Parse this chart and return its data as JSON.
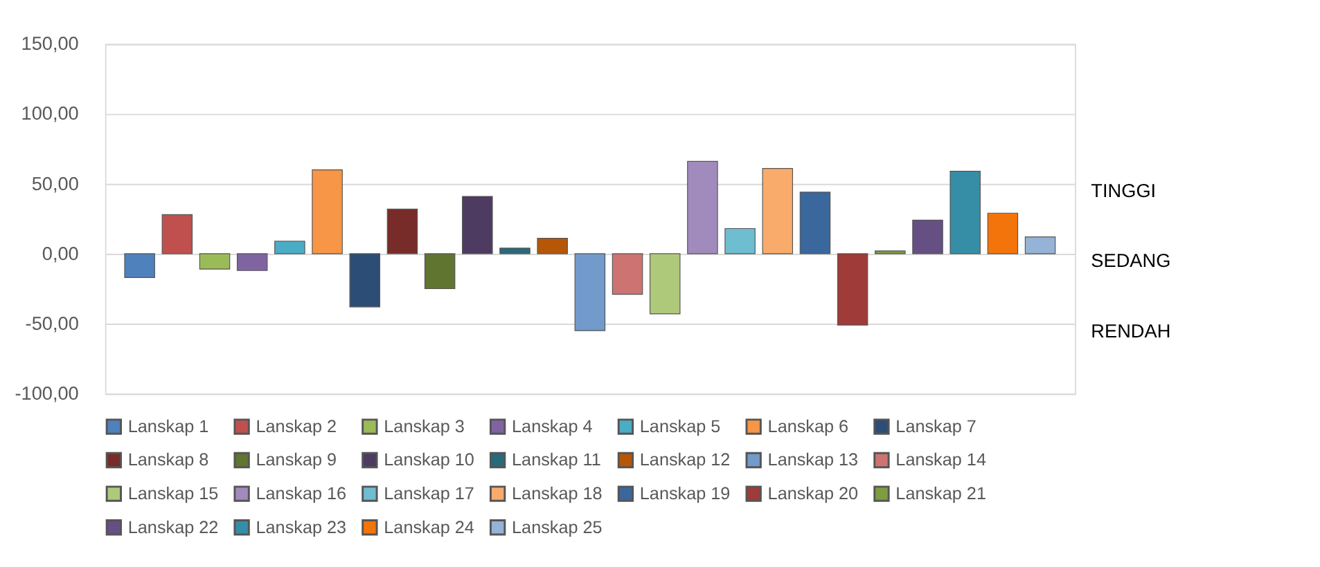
{
  "chart_data": {
    "type": "bar",
    "categories": [
      null
    ],
    "series": [
      {
        "name": "Lanskap 1",
        "color": "#4f81bd",
        "values": [
          -17
        ]
      },
      {
        "name": "Lanskap 2",
        "color": "#c0504d",
        "values": [
          28
        ]
      },
      {
        "name": "Lanskap 3",
        "color": "#9bbb59",
        "values": [
          -11
        ]
      },
      {
        "name": "Lanskap 4",
        "color": "#8064a2",
        "values": [
          -12
        ]
      },
      {
        "name": "Lanskap 5",
        "color": "#4bacc6",
        "values": [
          9
        ]
      },
      {
        "name": "Lanskap 6",
        "color": "#f79646",
        "values": [
          60
        ]
      },
      {
        "name": "Lanskap 7",
        "color": "#2c4d75",
        "values": [
          -38
        ]
      },
      {
        "name": "Lanskap 8",
        "color": "#772c2a",
        "values": [
          32
        ]
      },
      {
        "name": "Lanskap 9",
        "color": "#5f7530",
        "values": [
          -25
        ]
      },
      {
        "name": "Lanskap 10",
        "color": "#4d3b62",
        "values": [
          41
        ]
      },
      {
        "name": "Lanskap 11",
        "color": "#276a7c",
        "values": [
          4
        ]
      },
      {
        "name": "Lanskap 12",
        "color": "#b65708",
        "values": [
          11
        ]
      },
      {
        "name": "Lanskap 13",
        "color": "#729aca",
        "values": [
          -55
        ]
      },
      {
        "name": "Lanskap 14",
        "color": "#cd7371",
        "values": [
          -29
        ]
      },
      {
        "name": "Lanskap 15",
        "color": "#afc97a",
        "values": [
          -43
        ]
      },
      {
        "name": "Lanskap 16",
        "color": "#a18bbd",
        "values": [
          66
        ]
      },
      {
        "name": "Lanskap 17",
        "color": "#6fbdd1",
        "values": [
          18
        ]
      },
      {
        "name": "Lanskap 18",
        "color": "#f9ab6b",
        "values": [
          61
        ]
      },
      {
        "name": "Lanskap 19",
        "color": "#3a679c",
        "values": [
          44
        ]
      },
      {
        "name": "Lanskap 20",
        "color": "#9f3b38",
        "values": [
          -51
        ]
      },
      {
        "name": "Lanskap 21",
        "color": "#7f9c40",
        "values": [
          2
        ]
      },
      {
        "name": "Lanskap 22",
        "color": "#664f83",
        "values": [
          24
        ]
      },
      {
        "name": "Lanskap 23",
        "color": "#358ea6",
        "values": [
          59
        ]
      },
      {
        "name": "Lanskap 24",
        "color": "#f3740b",
        "values": [
          29
        ]
      },
      {
        "name": "Lanskap 25",
        "color": "#95b3d7",
        "values": [
          12
        ]
      }
    ],
    "ylim": [
      -100,
      150
    ],
    "yticks": [
      {
        "value": -100,
        "label": "-100,00"
      },
      {
        "value": -50,
        "label": "-50,00"
      },
      {
        "value": 0,
        "label": "0,00"
      },
      {
        "value": 50,
        "label": "50,00"
      },
      {
        "value": 100,
        "label": "100,00"
      },
      {
        "value": 150,
        "label": "150,00"
      }
    ],
    "annotations": [
      "TINGGI",
      "SEDANG",
      "RENDAH"
    ],
    "grid": "y",
    "legend": "bottom",
    "tick_labels": "y"
  }
}
